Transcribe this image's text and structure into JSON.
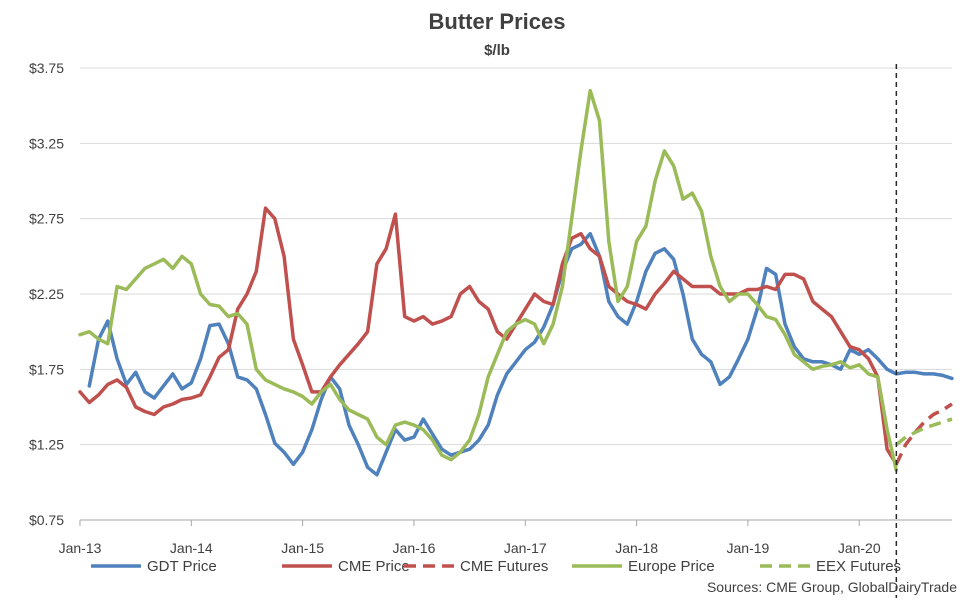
{
  "chart_data": {
    "type": "line",
    "title": "Butter Prices",
    "subtitle": "$/lb",
    "xlabel": "",
    "ylabel": "",
    "ylim": [
      0.75,
      3.75
    ],
    "xlim": [
      "2013-01",
      "2020-11"
    ],
    "y_ticks": [
      "$0.75",
      "$1.25",
      "$1.75",
      "$2.25",
      "$2.75",
      "$3.25",
      "$3.75"
    ],
    "x_ticks": [
      "Jan-13",
      "Jan-14",
      "Jan-15",
      "Jan-16",
      "Jan-17",
      "Jan-18",
      "Jan-19",
      "Jan-20"
    ],
    "grid": "horizontal",
    "legend_position": "bottom",
    "vertical_marker": "2020-05",
    "source": "Sources:  CME Group, GlobalDairyTrade",
    "colors": {
      "GDT Price": "#4F81BD",
      "CME Price": "#C0504D",
      "CME Futures": "#C0504D",
      "Europe Price": "#9BBB59",
      "EEX Futures": "#9BBB59",
      "grid": "#D9D9D9",
      "axis": "#404040"
    },
    "series": [
      {
        "name": "GDT Price",
        "style": "solid",
        "points": [
          [
            "2013-02",
            1.64
          ],
          [
            "2013-03",
            1.95
          ],
          [
            "2013-04",
            2.07
          ],
          [
            "2013-05",
            1.82
          ],
          [
            "2013-06",
            1.65
          ],
          [
            "2013-07",
            1.73
          ],
          [
            "2013-08",
            1.6
          ],
          [
            "2013-09",
            1.56
          ],
          [
            "2013-10",
            1.64
          ],
          [
            "2013-11",
            1.72
          ],
          [
            "2013-12",
            1.62
          ],
          [
            "2014-01",
            1.66
          ],
          [
            "2014-02",
            1.82
          ],
          [
            "2014-03",
            2.04
          ],
          [
            "2014-04",
            2.05
          ],
          [
            "2014-05",
            1.92
          ],
          [
            "2014-06",
            1.7
          ],
          [
            "2014-07",
            1.68
          ],
          [
            "2014-08",
            1.62
          ],
          [
            "2014-09",
            1.45
          ],
          [
            "2014-10",
            1.26
          ],
          [
            "2014-11",
            1.2
          ],
          [
            "2014-12",
            1.12
          ],
          [
            "2015-01",
            1.2
          ],
          [
            "2015-02",
            1.35
          ],
          [
            "2015-03",
            1.55
          ],
          [
            "2015-04",
            1.7
          ],
          [
            "2015-05",
            1.62
          ],
          [
            "2015-06",
            1.38
          ],
          [
            "2015-07",
            1.25
          ],
          [
            "2015-08",
            1.1
          ],
          [
            "2015-09",
            1.05
          ],
          [
            "2015-10",
            1.2
          ],
          [
            "2015-11",
            1.35
          ],
          [
            "2015-12",
            1.28
          ],
          [
            "2016-01",
            1.3
          ],
          [
            "2016-02",
            1.42
          ],
          [
            "2016-03",
            1.32
          ],
          [
            "2016-04",
            1.22
          ],
          [
            "2016-05",
            1.18
          ],
          [
            "2016-06",
            1.2
          ],
          [
            "2016-07",
            1.22
          ],
          [
            "2016-08",
            1.28
          ],
          [
            "2016-09",
            1.38
          ],
          [
            "2016-10",
            1.58
          ],
          [
            "2016-11",
            1.72
          ],
          [
            "2016-12",
            1.8
          ],
          [
            "2017-01",
            1.88
          ],
          [
            "2017-02",
            1.93
          ],
          [
            "2017-03",
            2.03
          ],
          [
            "2017-04",
            2.18
          ],
          [
            "2017-05",
            2.4
          ],
          [
            "2017-06",
            2.55
          ],
          [
            "2017-07",
            2.58
          ],
          [
            "2017-08",
            2.65
          ],
          [
            "2017-09",
            2.5
          ],
          [
            "2017-10",
            2.2
          ],
          [
            "2017-11",
            2.1
          ],
          [
            "2017-12",
            2.05
          ],
          [
            "2018-01",
            2.2
          ],
          [
            "2018-02",
            2.4
          ],
          [
            "2018-03",
            2.52
          ],
          [
            "2018-04",
            2.55
          ],
          [
            "2018-05",
            2.48
          ],
          [
            "2018-06",
            2.25
          ],
          [
            "2018-07",
            1.95
          ],
          [
            "2018-08",
            1.85
          ],
          [
            "2018-09",
            1.8
          ],
          [
            "2018-10",
            1.65
          ],
          [
            "2018-11",
            1.7
          ],
          [
            "2018-12",
            1.82
          ],
          [
            "2019-01",
            1.95
          ],
          [
            "2019-02",
            2.15
          ],
          [
            "2019-03",
            2.42
          ],
          [
            "2019-04",
            2.38
          ],
          [
            "2019-05",
            2.05
          ],
          [
            "2019-06",
            1.9
          ],
          [
            "2019-07",
            1.82
          ],
          [
            "2019-08",
            1.8
          ],
          [
            "2019-09",
            1.8
          ],
          [
            "2019-10",
            1.78
          ],
          [
            "2019-11",
            1.75
          ],
          [
            "2019-12",
            1.88
          ],
          [
            "2020-01",
            1.85
          ],
          [
            "2020-02",
            1.88
          ],
          [
            "2020-03",
            1.82
          ],
          [
            "2020-04",
            1.75
          ],
          [
            "2020-05",
            1.72
          ],
          [
            "2020-06",
            1.73
          ],
          [
            "2020-07",
            1.73
          ],
          [
            "2020-08",
            1.72
          ],
          [
            "2020-09",
            1.72
          ],
          [
            "2020-10",
            1.71
          ],
          [
            "2020-11",
            1.69
          ]
        ]
      },
      {
        "name": "CME Price",
        "style": "solid",
        "points": [
          [
            "2013-01",
            1.6
          ],
          [
            "2013-02",
            1.53
          ],
          [
            "2013-03",
            1.58
          ],
          [
            "2013-04",
            1.65
          ],
          [
            "2013-05",
            1.68
          ],
          [
            "2013-06",
            1.63
          ],
          [
            "2013-07",
            1.5
          ],
          [
            "2013-08",
            1.47
          ],
          [
            "2013-09",
            1.45
          ],
          [
            "2013-10",
            1.5
          ],
          [
            "2013-11",
            1.52
          ],
          [
            "2013-12",
            1.55
          ],
          [
            "2014-01",
            1.56
          ],
          [
            "2014-02",
            1.58
          ],
          [
            "2014-03",
            1.7
          ],
          [
            "2014-04",
            1.83
          ],
          [
            "2014-05",
            1.88
          ],
          [
            "2014-06",
            2.15
          ],
          [
            "2014-07",
            2.25
          ],
          [
            "2014-08",
            2.4
          ],
          [
            "2014-09",
            2.82
          ],
          [
            "2014-10",
            2.75
          ],
          [
            "2014-11",
            2.5
          ],
          [
            "2014-12",
            1.95
          ],
          [
            "2015-01",
            1.78
          ],
          [
            "2015-02",
            1.6
          ],
          [
            "2015-03",
            1.6
          ],
          [
            "2015-04",
            1.7
          ],
          [
            "2015-05",
            1.78
          ],
          [
            "2015-06",
            1.85
          ],
          [
            "2015-07",
            1.92
          ],
          [
            "2015-08",
            2.0
          ],
          [
            "2015-09",
            2.45
          ],
          [
            "2015-10",
            2.55
          ],
          [
            "2015-11",
            2.78
          ],
          [
            "2015-12",
            2.1
          ],
          [
            "2016-01",
            2.07
          ],
          [
            "2016-02",
            2.1
          ],
          [
            "2016-03",
            2.05
          ],
          [
            "2016-04",
            2.07
          ],
          [
            "2016-05",
            2.1
          ],
          [
            "2016-06",
            2.25
          ],
          [
            "2016-07",
            2.3
          ],
          [
            "2016-08",
            2.2
          ],
          [
            "2016-09",
            2.15
          ],
          [
            "2016-10",
            2.0
          ],
          [
            "2016-11",
            1.95
          ],
          [
            "2016-12",
            2.05
          ],
          [
            "2017-01",
            2.15
          ],
          [
            "2017-02",
            2.25
          ],
          [
            "2017-03",
            2.2
          ],
          [
            "2017-04",
            2.18
          ],
          [
            "2017-05",
            2.45
          ],
          [
            "2017-06",
            2.62
          ],
          [
            "2017-07",
            2.65
          ],
          [
            "2017-08",
            2.55
          ],
          [
            "2017-09",
            2.5
          ],
          [
            "2017-10",
            2.3
          ],
          [
            "2017-11",
            2.25
          ],
          [
            "2017-12",
            2.2
          ],
          [
            "2018-01",
            2.18
          ],
          [
            "2018-02",
            2.15
          ],
          [
            "2018-03",
            2.25
          ],
          [
            "2018-04",
            2.32
          ],
          [
            "2018-05",
            2.4
          ],
          [
            "2018-06",
            2.35
          ],
          [
            "2018-07",
            2.3
          ],
          [
            "2018-08",
            2.3
          ],
          [
            "2018-09",
            2.3
          ],
          [
            "2018-10",
            2.25
          ],
          [
            "2018-11",
            2.25
          ],
          [
            "2018-12",
            2.25
          ],
          [
            "2019-01",
            2.28
          ],
          [
            "2019-02",
            2.28
          ],
          [
            "2019-03",
            2.3
          ],
          [
            "2019-04",
            2.28
          ],
          [
            "2019-05",
            2.38
          ],
          [
            "2019-06",
            2.38
          ],
          [
            "2019-07",
            2.35
          ],
          [
            "2019-08",
            2.2
          ],
          [
            "2019-09",
            2.15
          ],
          [
            "2019-10",
            2.1
          ],
          [
            "2019-11",
            2.0
          ],
          [
            "2019-12",
            1.9
          ],
          [
            "2020-01",
            1.88
          ],
          [
            "2020-02",
            1.82
          ],
          [
            "2020-03",
            1.7
          ],
          [
            "2020-04",
            1.22
          ],
          [
            "2020-05",
            1.12
          ]
        ]
      },
      {
        "name": "CME Futures",
        "style": "dashed",
        "points": [
          [
            "2020-05",
            1.12
          ],
          [
            "2020-06",
            1.25
          ],
          [
            "2020-07",
            1.33
          ],
          [
            "2020-08",
            1.4
          ],
          [
            "2020-09",
            1.45
          ],
          [
            "2020-10",
            1.48
          ],
          [
            "2020-11",
            1.52
          ]
        ]
      },
      {
        "name": "Europe Price",
        "style": "solid",
        "points": [
          [
            "2013-01",
            1.98
          ],
          [
            "2013-02",
            2.0
          ],
          [
            "2013-03",
            1.95
          ],
          [
            "2013-04",
            1.92
          ],
          [
            "2013-05",
            2.3
          ],
          [
            "2013-06",
            2.28
          ],
          [
            "2013-07",
            2.35
          ],
          [
            "2013-08",
            2.42
          ],
          [
            "2013-09",
            2.45
          ],
          [
            "2013-10",
            2.48
          ],
          [
            "2013-11",
            2.42
          ],
          [
            "2013-12",
            2.5
          ],
          [
            "2014-01",
            2.45
          ],
          [
            "2014-02",
            2.25
          ],
          [
            "2014-03",
            2.18
          ],
          [
            "2014-04",
            2.17
          ],
          [
            "2014-05",
            2.1
          ],
          [
            "2014-06",
            2.12
          ],
          [
            "2014-07",
            2.05
          ],
          [
            "2014-08",
            1.75
          ],
          [
            "2014-09",
            1.68
          ],
          [
            "2014-10",
            1.65
          ],
          [
            "2014-11",
            1.62
          ],
          [
            "2014-12",
            1.6
          ],
          [
            "2015-01",
            1.57
          ],
          [
            "2015-02",
            1.52
          ],
          [
            "2015-03",
            1.6
          ],
          [
            "2015-04",
            1.65
          ],
          [
            "2015-05",
            1.55
          ],
          [
            "2015-06",
            1.48
          ],
          [
            "2015-07",
            1.45
          ],
          [
            "2015-08",
            1.42
          ],
          [
            "2015-09",
            1.3
          ],
          [
            "2015-10",
            1.25
          ],
          [
            "2015-11",
            1.38
          ],
          [
            "2015-12",
            1.4
          ],
          [
            "2016-01",
            1.38
          ],
          [
            "2016-02",
            1.35
          ],
          [
            "2016-03",
            1.28
          ],
          [
            "2016-04",
            1.18
          ],
          [
            "2016-05",
            1.15
          ],
          [
            "2016-06",
            1.2
          ],
          [
            "2016-07",
            1.28
          ],
          [
            "2016-08",
            1.45
          ],
          [
            "2016-09",
            1.7
          ],
          [
            "2016-10",
            1.85
          ],
          [
            "2016-11",
            2.0
          ],
          [
            "2016-12",
            2.05
          ],
          [
            "2017-01",
            2.08
          ],
          [
            "2017-02",
            2.05
          ],
          [
            "2017-03",
            1.92
          ],
          [
            "2017-04",
            2.05
          ],
          [
            "2017-05",
            2.3
          ],
          [
            "2017-06",
            2.75
          ],
          [
            "2017-07",
            3.2
          ],
          [
            "2017-08",
            3.6
          ],
          [
            "2017-09",
            3.4
          ],
          [
            "2017-10",
            2.6
          ],
          [
            "2017-11",
            2.2
          ],
          [
            "2017-12",
            2.3
          ],
          [
            "2018-01",
            2.6
          ],
          [
            "2018-02",
            2.7
          ],
          [
            "2018-03",
            3.0
          ],
          [
            "2018-04",
            3.2
          ],
          [
            "2018-05",
            3.1
          ],
          [
            "2018-06",
            2.88
          ],
          [
            "2018-07",
            2.92
          ],
          [
            "2018-08",
            2.8
          ],
          [
            "2018-09",
            2.5
          ],
          [
            "2018-10",
            2.3
          ],
          [
            "2018-11",
            2.2
          ],
          [
            "2018-12",
            2.25
          ],
          [
            "2019-01",
            2.25
          ],
          [
            "2019-02",
            2.18
          ],
          [
            "2019-03",
            2.1
          ],
          [
            "2019-04",
            2.08
          ],
          [
            "2019-05",
            1.98
          ],
          [
            "2019-06",
            1.85
          ],
          [
            "2019-07",
            1.8
          ],
          [
            "2019-08",
            1.75
          ],
          [
            "2019-09",
            1.77
          ],
          [
            "2019-10",
            1.78
          ],
          [
            "2019-11",
            1.8
          ],
          [
            "2019-12",
            1.76
          ],
          [
            "2020-01",
            1.78
          ],
          [
            "2020-02",
            1.72
          ],
          [
            "2020-03",
            1.7
          ],
          [
            "2020-04",
            1.35
          ],
          [
            "2020-05",
            1.08
          ]
        ]
      },
      {
        "name": "EEX Futures",
        "style": "dashed",
        "points": [
          [
            "2020-05",
            1.25
          ],
          [
            "2020-06",
            1.3
          ],
          [
            "2020-07",
            1.33
          ],
          [
            "2020-08",
            1.36
          ],
          [
            "2020-09",
            1.38
          ],
          [
            "2020-10",
            1.4
          ],
          [
            "2020-11",
            1.42
          ]
        ]
      }
    ]
  }
}
